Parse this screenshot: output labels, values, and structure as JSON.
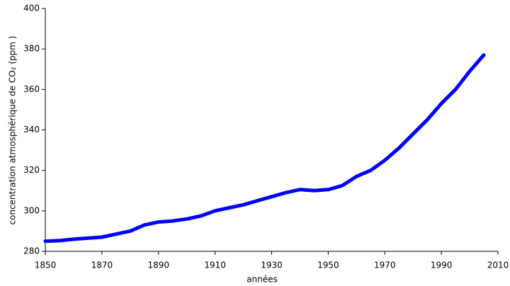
{
  "chart_data": {
    "type": "line",
    "xlabel": "années",
    "ylabel": "concentration atmosphérique de CO₂ (ppm  )",
    "x": [
      1850,
      1855,
      1860,
      1865,
      1870,
      1875,
      1880,
      1885,
      1890,
      1895,
      1900,
      1905,
      1910,
      1915,
      1920,
      1925,
      1930,
      1935,
      1940,
      1945,
      1950,
      1955,
      1960,
      1965,
      1970,
      1975,
      1980,
      1985,
      1990,
      1995,
      2000,
      2005
    ],
    "values": [
      285,
      285.3,
      286,
      286.5,
      287,
      288.5,
      290,
      293,
      294.5,
      295,
      296,
      297.5,
      300,
      301.5,
      303,
      305,
      307,
      309,
      310.5,
      310,
      310.5,
      312.5,
      317,
      320,
      325,
      331,
      338,
      345,
      353,
      360,
      369,
      377
    ],
    "color": "#0000ff",
    "xlim": [
      1850,
      2010
    ],
    "xticks": [
      1850,
      1870,
      1890,
      1910,
      1930,
      1950,
      1970,
      1990,
      2010
    ],
    "ylim": [
      280,
      400
    ],
    "yticks": [
      280,
      300,
      320,
      340,
      360,
      380,
      400
    ],
    "grid": false
  }
}
